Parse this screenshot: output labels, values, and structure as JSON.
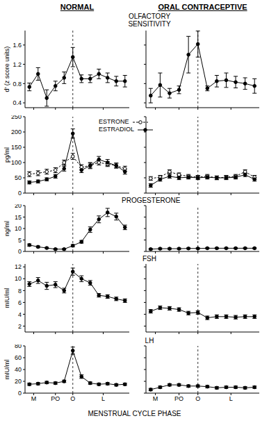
{
  "chart_data": [
    {
      "type": "line",
      "subtitle": "NORMAL",
      "y_label": "d' (z score units)",
      "x": [
        1,
        2,
        3,
        4,
        5,
        6,
        7,
        8,
        9,
        10,
        11,
        12
      ],
      "xlim": [
        0.5,
        12.5
      ],
      "xticks": [
        {
          "value": 1.5,
          "label": "M"
        },
        {
          "value": 4,
          "label": "PO"
        },
        {
          "value": 6,
          "label": "O"
        },
        {
          "value": 9.5,
          "label": "L"
        }
      ],
      "ylim": [
        0.3,
        1.9
      ],
      "yticks": [
        0.4,
        0.8,
        1.2,
        1.6
      ],
      "tick_labels": "y",
      "reference_line": {
        "x": 6,
        "line_style": "dashed"
      },
      "series": [
        {
          "color": "#000000",
          "marker": "circle",
          "line_style": "solid",
          "values": [
            0.73,
            1.0,
            0.5,
            0.75,
            0.92,
            1.35,
            0.9,
            0.9,
            1.0,
            0.92,
            0.85,
            0.85
          ],
          "errors": [
            0.08,
            0.13,
            0.17,
            0.1,
            0.12,
            0.2,
            0.08,
            0.08,
            0.1,
            0.1,
            0.1,
            0.12
          ]
        }
      ]
    },
    {
      "type": "line",
      "subtitle": "ORAL CONTRACEPTIVE",
      "title": "OLFACTORY SENSITIVITY",
      "x": [
        1,
        2,
        3,
        4,
        5,
        6,
        7,
        8,
        9,
        10,
        11,
        12
      ],
      "xlim": [
        0.5,
        12.5
      ],
      "xticks": [
        {
          "value": 1.5,
          "label": "M"
        },
        {
          "value": 4,
          "label": "PO"
        },
        {
          "value": 6,
          "label": "O"
        },
        {
          "value": 9.5,
          "label": "L"
        }
      ],
      "ylim": [
        0.3,
        1.9
      ],
      "yticks": [
        0.4,
        0.8,
        1.2,
        1.6
      ],
      "tick_labels": false,
      "reference_line": {
        "x": 6,
        "line_style": "dashed"
      },
      "series": [
        {
          "color": "#000000",
          "marker": "circle",
          "line_style": "solid",
          "values": [
            0.55,
            0.77,
            0.6,
            0.67,
            1.4,
            1.62,
            0.7,
            0.85,
            0.87,
            0.83,
            0.8,
            0.75
          ],
          "errors": [
            0.15,
            0.25,
            0.1,
            0.08,
            0.38,
            0.27,
            0.05,
            0.12,
            0.15,
            0.12,
            0.12,
            0.15
          ]
        }
      ]
    },
    {
      "type": "line",
      "y_label": "pg/ml",
      "legend": "upper right",
      "x": [
        1,
        2,
        3,
        4,
        5,
        6,
        7,
        8,
        9,
        10,
        11,
        12
      ],
      "xlim": [
        0.5,
        12.5
      ],
      "xticks": [
        {
          "value": 1.5,
          "label": "M"
        },
        {
          "value": 4,
          "label": "PO"
        },
        {
          "value": 6,
          "label": "O"
        },
        {
          "value": 9.5,
          "label": "L"
        }
      ],
      "ylim": [
        0,
        250
      ],
      "yticks": [
        0,
        50,
        100,
        150,
        200,
        250
      ],
      "tick_labels": "y",
      "reference_line": {
        "x": 6,
        "line_style": "dashed"
      },
      "series": [
        {
          "name": "ESTRONE",
          "color": "#000000",
          "marker": "open_circle",
          "line_style": "dashed",
          "values": [
            62,
            65,
            70,
            75,
            100,
            120,
            85,
            90,
            100,
            95,
            90,
            80
          ],
          "errors": [
            8,
            8,
            8,
            8,
            8,
            10,
            8,
            8,
            8,
            8,
            8,
            8
          ]
        },
        {
          "name": "ESTRADIOL",
          "color": "#000000",
          "marker": "circle",
          "line_style": "solid",
          "values": [
            35,
            38,
            45,
            55,
            80,
            195,
            75,
            90,
            110,
            100,
            90,
            70
          ],
          "errors": [
            5,
            5,
            5,
            6,
            8,
            15,
            8,
            10,
            10,
            10,
            8,
            8
          ]
        }
      ]
    },
    {
      "type": "line",
      "x": [
        1,
        2,
        3,
        4,
        5,
        6,
        7,
        8,
        9,
        10,
        11,
        12
      ],
      "xlim": [
        0.5,
        12.5
      ],
      "xticks": [
        {
          "value": 1.5,
          "label": "M"
        },
        {
          "value": 4,
          "label": "PO"
        },
        {
          "value": 6,
          "label": "O"
        },
        {
          "value": 9.5,
          "label": "L"
        }
      ],
      "ylim": [
        0,
        250
      ],
      "yticks": [
        0,
        50,
        100,
        150,
        200,
        250
      ],
      "tick_labels": false,
      "reference_line": {
        "x": 6,
        "line_style": "dashed"
      },
      "series": [
        {
          "name": "ESTRONE",
          "color": "#000000",
          "marker": "open_circle",
          "line_style": "dashed",
          "values": [
            48,
            52,
            70,
            60,
            55,
            52,
            55,
            50,
            52,
            55,
            70,
            52
          ],
          "errors": [
            6,
            6,
            6,
            6,
            6,
            6,
            6,
            6,
            6,
            6,
            6,
            6
          ]
        },
        {
          "name": "ESTRADIOL",
          "color": "#000000",
          "marker": "circle",
          "line_style": "solid",
          "values": [
            25,
            45,
            55,
            50,
            52,
            50,
            52,
            50,
            50,
            52,
            60,
            45
          ],
          "errors": [
            6,
            6,
            6,
            6,
            6,
            6,
            6,
            6,
            6,
            6,
            6,
            6
          ]
        }
      ]
    },
    {
      "type": "line",
      "y_label": "ng/ml",
      "x": [
        1,
        2,
        3,
        4,
        5,
        6,
        7,
        8,
        9,
        10,
        11,
        12
      ],
      "xlim": [
        0.5,
        12.5
      ],
      "xticks": [
        {
          "value": 1.5,
          "label": "M"
        },
        {
          "value": 4,
          "label": "PO"
        },
        {
          "value": 6,
          "label": "O"
        },
        {
          "value": 9.5,
          "label": "L"
        }
      ],
      "ylim": [
        0,
        20
      ],
      "yticks": [
        0,
        5,
        10,
        15,
        20
      ],
      "tick_labels": "y",
      "reference_line": {
        "x": 6,
        "line_style": "dashed"
      },
      "series": [
        {
          "color": "#000000",
          "marker": "circle",
          "line_style": "solid",
          "values": [
            2.8,
            2.0,
            1.5,
            1.0,
            1.0,
            2.5,
            4.2,
            9.5,
            14,
            17,
            15.2,
            10.5
          ],
          "errors": [
            0.5,
            0.4,
            0.3,
            0.3,
            0.3,
            0.5,
            0.6,
            1.2,
            1.5,
            1.8,
            1.5,
            1.0
          ]
        }
      ]
    },
    {
      "type": "line",
      "title": "PROGESTERONE",
      "x": [
        1,
        2,
        3,
        4,
        5,
        6,
        7,
        8,
        9,
        10,
        11,
        12
      ],
      "xlim": [
        0.5,
        12.5
      ],
      "xticks": [
        {
          "value": 1.5,
          "label": "M"
        },
        {
          "value": 4,
          "label": "PO"
        },
        {
          "value": 6,
          "label": "O"
        },
        {
          "value": 9.5,
          "label": "L"
        }
      ],
      "ylim": [
        0,
        20
      ],
      "yticks": [
        0,
        5,
        10,
        15,
        20
      ],
      "tick_labels": false,
      "reference_line": {
        "x": 6,
        "line_style": "dashed"
      },
      "series": [
        {
          "color": "#000000",
          "marker": "circle",
          "line_style": "solid",
          "values": [
            1.0,
            1.2,
            1.2,
            1.2,
            1.3,
            1.3,
            1.4,
            1.4,
            1.4,
            1.4,
            1.4,
            1.4
          ],
          "errors": [
            0.3,
            0.3,
            0.3,
            0.3,
            0.3,
            0.3,
            0.3,
            0.3,
            0.3,
            0.3,
            0.3,
            0.3
          ]
        }
      ]
    },
    {
      "type": "line",
      "y_label": "mIU/ml",
      "x": [
        1,
        2,
        3,
        4,
        5,
        6,
        7,
        8,
        9,
        10,
        11,
        12
      ],
      "xlim": [
        0.5,
        12.5
      ],
      "xticks": [
        {
          "value": 1.5,
          "label": "M"
        },
        {
          "value": 4,
          "label": "PO"
        },
        {
          "value": 6,
          "label": "O"
        },
        {
          "value": 9.5,
          "label": "L"
        }
      ],
      "ylim": [
        1,
        12.5
      ],
      "yticks": [
        2,
        4,
        6,
        8,
        10,
        12
      ],
      "tick_labels": "y",
      "reference_line": {
        "x": 6,
        "line_style": "dashed"
      },
      "series": [
        {
          "color": "#000000",
          "marker": "circle",
          "line_style": "solid",
          "values": [
            9.1,
            9.7,
            8.8,
            9.0,
            8.0,
            11.2,
            10.0,
            9.3,
            7.2,
            7.0,
            6.6,
            6.3
          ],
          "errors": [
            0.4,
            0.5,
            0.6,
            0.5,
            0.4,
            0.6,
            0.5,
            0.4,
            0.3,
            0.3,
            0.3,
            0.3
          ]
        }
      ]
    },
    {
      "type": "line",
      "title": "FSH",
      "x": [
        1,
        2,
        3,
        4,
        5,
        6,
        7,
        8,
        9,
        10,
        11,
        12
      ],
      "xlim": [
        0.5,
        12.5
      ],
      "xticks": [
        {
          "value": 1.5,
          "label": "M"
        },
        {
          "value": 4,
          "label": "PO"
        },
        {
          "value": 6,
          "label": "O"
        },
        {
          "value": 9.5,
          "label": "L"
        }
      ],
      "ylim": [
        1,
        12.5
      ],
      "yticks": [
        2,
        4,
        6,
        8,
        10,
        12
      ],
      "tick_labels": false,
      "reference_line": {
        "x": 6,
        "line_style": "dashed"
      },
      "series": [
        {
          "color": "#000000",
          "marker": "circle",
          "line_style": "solid",
          "values": [
            4.5,
            5.1,
            5.0,
            4.8,
            4.2,
            4.3,
            3.4,
            3.6,
            3.6,
            3.5,
            3.6,
            3.6
          ],
          "errors": [
            0.3,
            0.3,
            0.3,
            0.3,
            0.3,
            0.3,
            0.3,
            0.3,
            0.3,
            0.3,
            0.3,
            0.3
          ]
        }
      ]
    },
    {
      "type": "line",
      "y_label": "mIU/ml",
      "x_label": "MENSTRUAL CYCLE PHASE",
      "x": [
        1,
        2,
        3,
        4,
        5,
        6,
        7,
        8,
        9,
        10,
        11,
        12
      ],
      "xlim": [
        0.5,
        12.5
      ],
      "xticks": [
        {
          "value": 1.5,
          "label": "M"
        },
        {
          "value": 4,
          "label": "PO"
        },
        {
          "value": 6,
          "label": "O"
        },
        {
          "value": 9.5,
          "label": "L"
        }
      ],
      "ylim": [
        0,
        80
      ],
      "yticks": [
        0,
        20,
        40,
        60,
        80
      ],
      "tick_labels": true,
      "reference_line": {
        "x": 6,
        "line_style": "dashed"
      },
      "series": [
        {
          "color": "#000000",
          "marker": "circle",
          "line_style": "solid",
          "values": [
            15,
            16,
            18,
            17,
            20,
            72,
            28,
            17,
            15,
            16,
            14,
            15
          ],
          "errors": [
            2,
            2,
            2,
            2,
            2,
            6,
            3,
            2,
            2,
            2,
            2,
            2
          ]
        }
      ]
    },
    {
      "type": "line",
      "title": "LH",
      "x": [
        1,
        2,
        3,
        4,
        5,
        6,
        7,
        8,
        9,
        10,
        11,
        12
      ],
      "xlim": [
        0.5,
        12.5
      ],
      "xticks": [
        {
          "value": 1.5,
          "label": "M"
        },
        {
          "value": 4,
          "label": "PO"
        },
        {
          "value": 6,
          "label": "O"
        },
        {
          "value": 9.5,
          "label": "L"
        }
      ],
      "ylim": [
        0,
        80
      ],
      "yticks": [
        0,
        20,
        40,
        60,
        80
      ],
      "tick_labels": "x",
      "reference_line": {
        "x": 6,
        "line_style": "dashed"
      },
      "series": [
        {
          "color": "#000000",
          "marker": "circle",
          "line_style": "solid",
          "values": [
            6,
            10,
            14,
            14,
            12,
            12,
            11,
            9,
            10,
            10,
            9,
            10
          ],
          "errors": [
            2,
            2,
            2,
            2,
            2,
            2,
            2,
            2,
            2,
            2,
            2,
            2
          ]
        }
      ]
    }
  ]
}
